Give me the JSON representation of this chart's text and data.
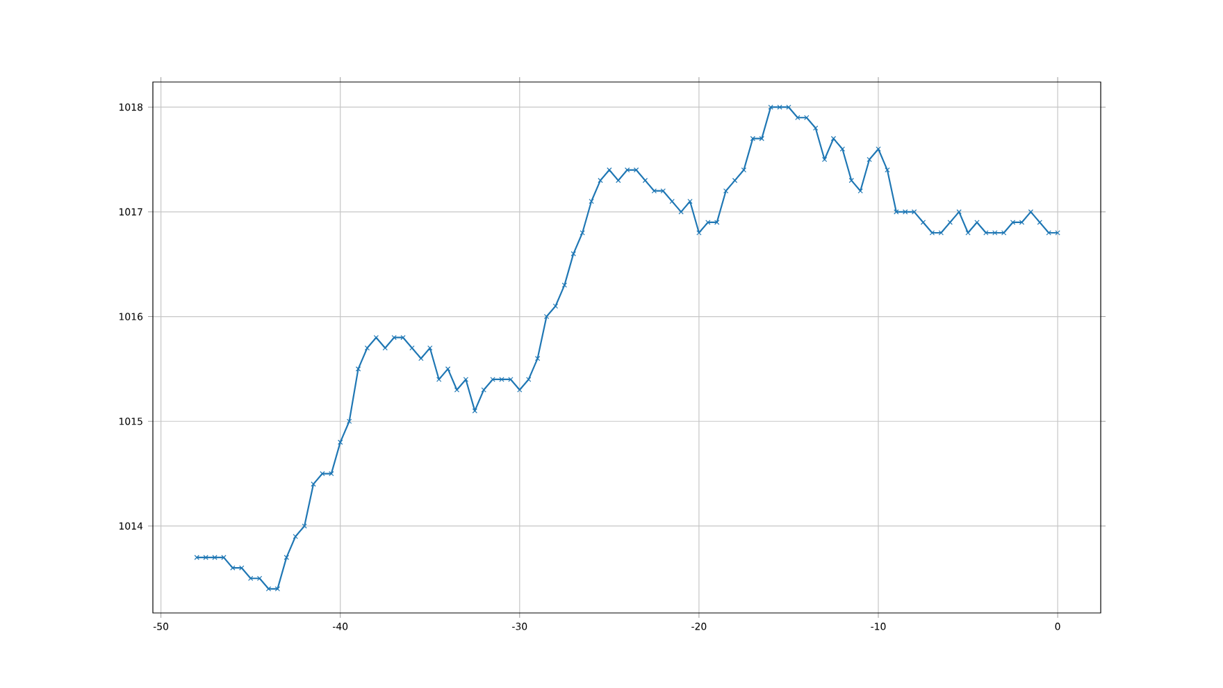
{
  "chart_data": {
    "type": "line",
    "x": [
      -48,
      -47.5,
      -47,
      -46.5,
      -46,
      -45.5,
      -45,
      -44.5,
      -44,
      -43.5,
      -43,
      -42.5,
      -42,
      -41.5,
      -41,
      -40.5,
      -40,
      -39.5,
      -39,
      -38.5,
      -38,
      -37.5,
      -37,
      -36.5,
      -36,
      -35.5,
      -35,
      -34.5,
      -34,
      -33.5,
      -33,
      -32.5,
      -32,
      -31.5,
      -31,
      -30.5,
      -30,
      -29.5,
      -29,
      -28.5,
      -28,
      -27.5,
      -27,
      -26.5,
      -26,
      -25.5,
      -25,
      -24.5,
      -24,
      -23.5,
      -23,
      -22.5,
      -22,
      -21.5,
      -21,
      -20.5,
      -20,
      -19.5,
      -19,
      -18.5,
      -18,
      -17.5,
      -17,
      -16.5,
      -16,
      -15.5,
      -15,
      -14.5,
      -14,
      -13.5,
      -13,
      -12.5,
      -12,
      -11.5,
      -11,
      -10.5,
      -10,
      -9.5,
      -9,
      -8.5,
      -8,
      -7.5,
      -7,
      -6.5,
      -6,
      -5.5,
      -5,
      -4.5,
      -4,
      -3.5,
      -3,
      -2.5,
      -2,
      -1.5,
      -1,
      -0.5,
      0
    ],
    "series": [
      {
        "color": "#1f77b4",
        "values": [
          1013.7,
          1013.7,
          1013.7,
          1013.7,
          1013.6,
          1013.6,
          1013.5,
          1013.5,
          1013.4,
          1013.4,
          1013.7,
          1013.9,
          1014.0,
          1014.4,
          1014.5,
          1014.5,
          1014.8,
          1015.0,
          1015.5,
          1015.7,
          1015.8,
          1015.7,
          1015.8,
          1015.8,
          1015.7,
          1015.6,
          1015.7,
          1015.4,
          1015.5,
          1015.3,
          1015.4,
          1015.1,
          1015.3,
          1015.4,
          1015.4,
          1015.4,
          1015.3,
          1015.4,
          1015.6,
          1016.0,
          1016.1,
          1016.3,
          1016.6,
          1016.8,
          1017.1,
          1017.3,
          1017.4,
          1017.3,
          1017.4,
          1017.4,
          1017.3,
          1017.2,
          1017.2,
          1017.1,
          1017.0,
          1017.1,
          1016.8,
          1016.9,
          1016.9,
          1017.2,
          1017.3,
          1017.4,
          1017.7,
          1017.7,
          1018.0,
          1018.0,
          1018.0,
          1017.9,
          1017.9,
          1017.8,
          1017.5,
          1017.7,
          1017.6,
          1017.3,
          1017.2,
          1017.5,
          1017.6,
          1017.4,
          1017.0,
          1017.0,
          1017.0,
          1016.9,
          1016.8,
          1016.8,
          1016.9,
          1017.0,
          1016.8,
          1016.9,
          1016.8,
          1016.8,
          1016.8,
          1016.9,
          1016.9,
          1017.0,
          1016.9,
          1016.8,
          1016.8
        ]
      }
    ],
    "xlim": [
      -50.45,
      2.4
    ],
    "ylim": [
      1013.17,
      1018.24
    ],
    "xticks": [
      -50,
      -40,
      -30,
      -20,
      -10,
      0
    ],
    "yticks": [
      1014,
      1015,
      1016,
      1017,
      1018
    ],
    "grid": true,
    "marker": "cross",
    "line_style": "solid"
  }
}
